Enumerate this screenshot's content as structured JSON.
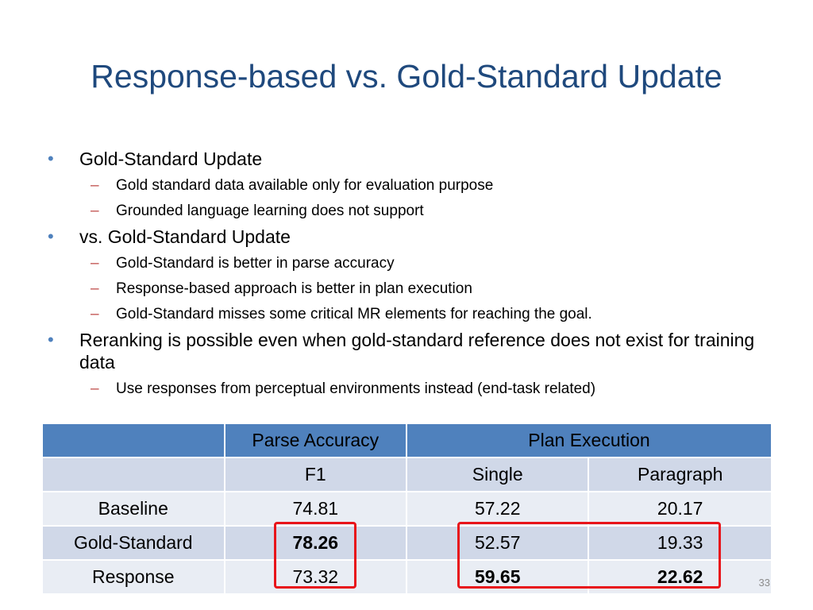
{
  "slide": {
    "title": "Response-based vs. Gold-Standard Update",
    "page_number": "33"
  },
  "bullets": [
    {
      "text": "Gold-Standard Update",
      "subs": [
        "Gold standard data available only for evaluation purpose",
        "Grounded language learning does not support"
      ]
    },
    {
      "text": "vs. Gold-Standard Update",
      "subs": [
        "Gold-Standard is better in parse accuracy",
        "Response-based approach is better in plan execution",
        "Gold-Standard misses some critical MR elements for reaching the goal."
      ]
    },
    {
      "text": "Reranking is possible even when gold-standard reference does not exist for training data",
      "subs": [
        "Use responses from perceptual environments instead (end-task related)"
      ]
    }
  ],
  "table": {
    "header": [
      "",
      "Parse Accuracy",
      "Plan Execution"
    ],
    "subheader": [
      "",
      "F1",
      "Single",
      "Paragraph"
    ],
    "rows": [
      [
        "Baseline",
        "74.81",
        "57.22",
        "20.17"
      ],
      [
        "Gold-Standard",
        "78.26",
        "52.57",
        "19.33"
      ],
      [
        "Response",
        "73.32",
        "59.65",
        "22.62"
      ]
    ]
  },
  "colors": {
    "title": "#1F497D",
    "bullet": "#4F81BD",
    "dash": "#C0504D",
    "table_header": "#4F81BD",
    "table_band_dark": "#D0D8E8",
    "table_band_light": "#E9EDF4",
    "highlight_box": "#E8141A"
  }
}
